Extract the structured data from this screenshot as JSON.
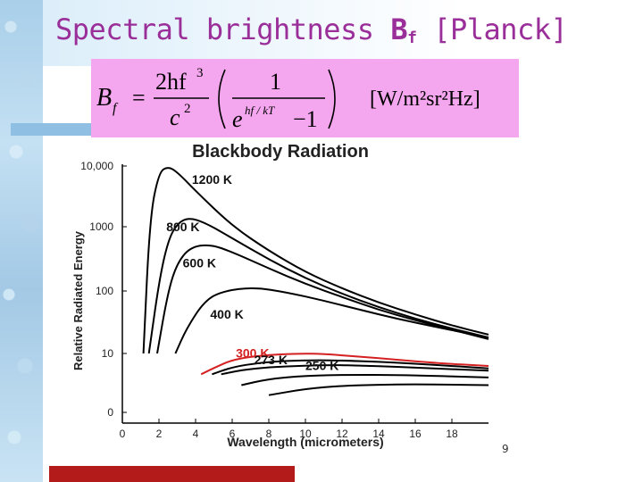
{
  "slide": {
    "title_main": "Spectral brightness ",
    "title_symbol": "B",
    "title_subscript": "f",
    "title_bracket": " [Planck]",
    "page_number": "9"
  },
  "formula": {
    "lhs_symbol": "B",
    "lhs_subscript": "f",
    "equals": "=",
    "numerator": "2hf",
    "numerator_exp": "3",
    "denominator": "c",
    "denominator_exp": "2",
    "inner_numerator": "1",
    "exp_base": "e",
    "exp_power": "hf / kT",
    "minus_one": "−1",
    "units": "[W/m²sr²Hz]"
  },
  "colors": {
    "highlight_series": "#d42020",
    "curve": "#000000",
    "title": "#9a2f9a",
    "formula_bg": "#f4a6ee"
  },
  "chart_data": {
    "type": "line",
    "title": "Blackbody Radiation",
    "xlabel": "Wavelength (micrometers)",
    "ylabel": "Relative Radiated Energy",
    "xlim": [
      0,
      20
    ],
    "x_ticks": [
      0,
      2,
      4,
      6,
      8,
      10,
      12,
      14,
      16,
      18
    ],
    "y_ticks": [
      0,
      10,
      100,
      1000,
      10000
    ],
    "y_tick_labels": [
      "0",
      "10",
      "100",
      "1000",
      "10,000"
    ],
    "y_scale": "log-style (decades)",
    "grid": false,
    "series": [
      {
        "name": "1200 K",
        "x": [
          1.15,
          1.5,
          2.0,
          2.5,
          3,
          4,
          6,
          8,
          10,
          12,
          14,
          16,
          18,
          20
        ],
        "y": [
          10,
          1500,
          8000,
          9800,
          8000,
          4000,
          1100,
          440,
          200,
          110,
          65,
          42,
          28,
          20
        ]
      },
      {
        "name": "800 K",
        "x": [
          1.45,
          2.0,
          2.5,
          3.0,
          3.6,
          4.5,
          6,
          8,
          10,
          12,
          14,
          16,
          18,
          20
        ],
        "y": [
          10,
          140,
          650,
          1200,
          1500,
          1250,
          700,
          320,
          160,
          90,
          55,
          36,
          25,
          18
        ]
      },
      {
        "name": "600 K",
        "x": [
          1.9,
          2.5,
          3.0,
          3.7,
          4.8,
          6,
          8,
          10,
          12,
          14,
          16,
          18,
          20
        ],
        "y": [
          10,
          100,
          280,
          500,
          560,
          420,
          230,
          130,
          80,
          50,
          34,
          24,
          17
        ]
      },
      {
        "name": "400 K",
        "x": [
          2.9,
          3.5,
          4.5,
          5.5,
          7.2,
          9,
          11,
          13,
          15,
          17,
          20
        ],
        "y": [
          10,
          25,
          70,
          100,
          115,
          95,
          70,
          50,
          36,
          27,
          18
        ]
      },
      {
        "name": "300 K",
        "x": [
          4.3,
          5,
          6,
          7.5,
          9.6,
          11,
          13,
          15,
          17,
          20
        ],
        "y": [
          1,
          2,
          5,
          8,
          10,
          9.5,
          7,
          5,
          3.5,
          2.5
        ]
      },
      {
        "name": "273 K",
        "x": [
          4.9,
          6,
          7.5,
          9,
          10.6,
          12,
          14,
          16,
          18,
          20
        ],
        "y": [
          1,
          2.2,
          3.6,
          4.4,
          4.8,
          4.6,
          4,
          3.2,
          2.5,
          1.9
        ]
      },
      {
        "name": "250 K",
        "x": [
          5.4,
          6.5,
          8,
          10,
          11.6,
          13,
          15,
          17,
          20
        ],
        "y": [
          1,
          1.6,
          2.2,
          2.6,
          2.8,
          2.6,
          2.3,
          1.9,
          1.5
        ]
      },
      {
        "name": "",
        "x": [
          6.5,
          8,
          10,
          12.5,
          15,
          17,
          20
        ],
        "y": [
          0.3,
          0.6,
          0.85,
          0.95,
          0.92,
          0.85,
          0.7
        ]
      },
      {
        "name": "",
        "x": [
          8,
          10,
          12,
          14,
          16,
          18,
          20
        ],
        "y": [
          0.1,
          0.2,
          0.28,
          0.32,
          0.33,
          0.32,
          0.3
        ]
      }
    ]
  }
}
